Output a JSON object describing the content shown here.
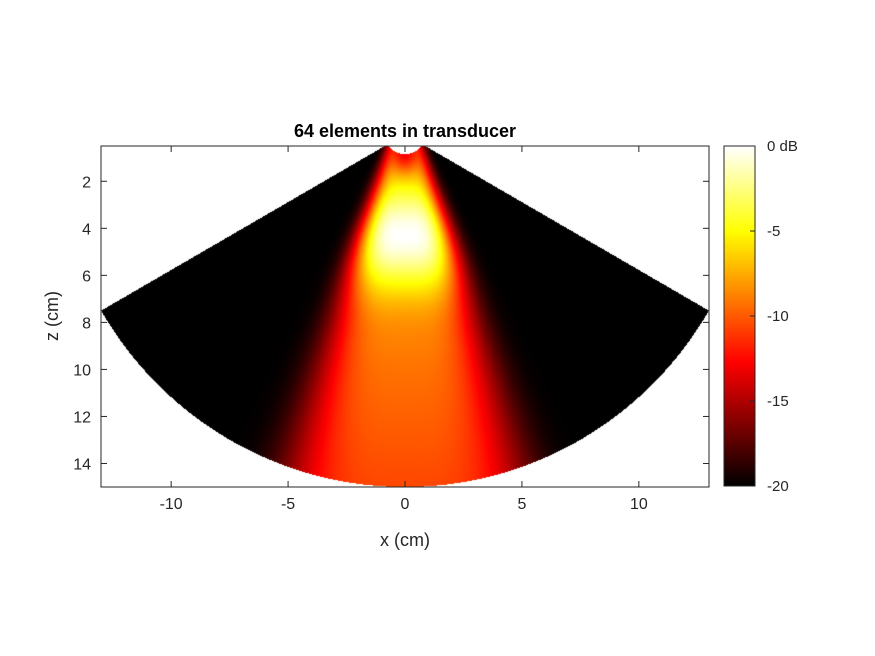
{
  "chart_data": {
    "type": "heatmap",
    "title": "64 elements in transducer",
    "xlabel": "x (cm)",
    "ylabel": "z (cm)",
    "xlim": [
      -13,
      13
    ],
    "ylim": [
      0.5,
      15
    ],
    "y_direction": "reversed",
    "x_ticks": [
      -10,
      -5,
      0,
      5,
      10
    ],
    "x_tick_labels": [
      "-10",
      "-5",
      "0",
      "5",
      "10"
    ],
    "y_ticks": [
      2,
      4,
      6,
      8,
      10,
      12,
      14
    ],
    "y_tick_labels": [
      "2",
      "4",
      "6",
      "8",
      "10",
      "12",
      "14"
    ],
    "colormap": "hot",
    "colorbar": {
      "range": [
        -20,
        0
      ],
      "ticks": [
        0,
        -5,
        -10,
        -15,
        -20
      ],
      "tick_labels": [
        "0 dB",
        "-5",
        "-10",
        "-15",
        "-20"
      ]
    },
    "field": {
      "sector_half_angle_deg": 60,
      "apex_z": 0,
      "max_depth": 15,
      "focus_z": 4.3,
      "grid": false
    }
  }
}
